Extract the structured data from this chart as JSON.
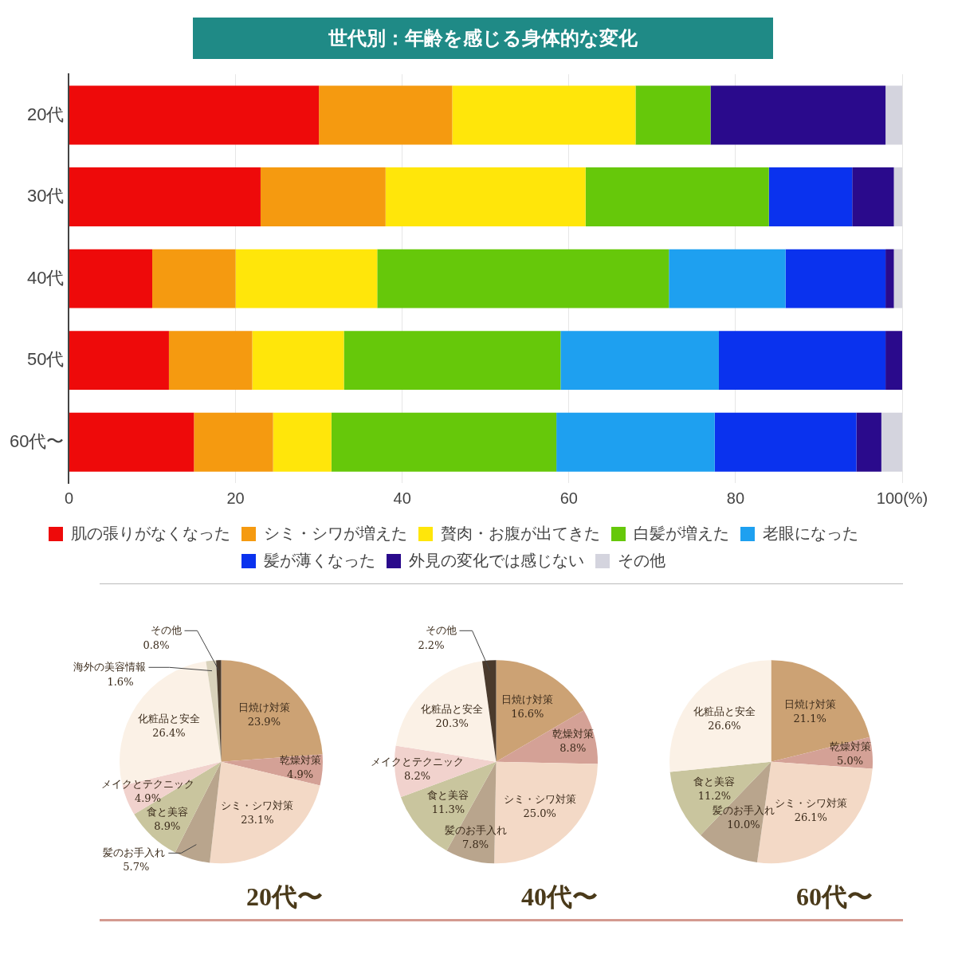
{
  "chart_data": [
    {
      "type": "bar",
      "orientation": "horizontal",
      "stacked": true,
      "title": "世代別：年齢を感じる身体的な変化",
      "categories": [
        "20代",
        "30代",
        "40代",
        "50代",
        "60代〜"
      ],
      "xlim": [
        0,
        100
      ],
      "xticks": [
        0,
        20,
        40,
        60,
        {
          "value": 100,
          "label": "100(%)"
        },
        80
      ],
      "grid": "x",
      "legend": "bottom",
      "series": [
        {
          "name": "肌の張りがなくなった",
          "color": "#ee0a0a",
          "values": [
            30,
            23,
            10,
            12,
            15
          ]
        },
        {
          "name": "シミ・シワが増えた",
          "color": "#f59a10",
          "values": [
            16,
            15,
            10,
            10,
            9.5
          ]
        },
        {
          "name": "贅肉・お腹が出てきた",
          "color": "#ffe60a",
          "values": [
            22,
            24,
            17,
            11,
            7
          ]
        },
        {
          "name": "白髪が増えた",
          "color": "#66c80a",
          "values": [
            9,
            22,
            35,
            26,
            27
          ]
        },
        {
          "name": "老眼になった",
          "color": "#1ea0f0",
          "values": [
            0,
            0,
            14,
            19,
            19
          ]
        },
        {
          "name": "髪が薄くなった",
          "color": "#0a32ee",
          "values": [
            0,
            10,
            12,
            20,
            17
          ]
        },
        {
          "name": "外見の変化では感じない",
          "color": "#2a0a8c",
          "values": [
            21,
            5,
            1,
            2,
            3
          ]
        },
        {
          "name": "その他",
          "color": "#d4d4de",
          "values": [
            2,
            1,
            1,
            0,
            2.5
          ]
        }
      ]
    },
    {
      "type": "pie",
      "title": "20代〜",
      "categories": [
        "日焼け対策",
        "乾燥対策",
        "シミ・シワ対策",
        "髪のお手入れ",
        "食と美容",
        "メイクとテクニック",
        "化粧品と安全",
        "海外の美容情報",
        "その他"
      ],
      "values": [
        23.9,
        4.9,
        23.1,
        5.7,
        8.9,
        4.9,
        26.4,
        1.6,
        0.8
      ],
      "value_labels": [
        "23.9%",
        "4.9%",
        "23.1%",
        "5.7%",
        "8.9%",
        "4.9%",
        "26.4%",
        "1.6%",
        "0.8%"
      ],
      "colors": [
        "#cca274",
        "#d4a196",
        "#f3d9c6",
        "#b9a58d",
        "#c9c59e",
        "#f1d2cd",
        "#fbf1e6",
        "#d9d2bb",
        "#4a3a2c"
      ]
    },
    {
      "type": "pie",
      "title": "40代〜",
      "categories": [
        "日焼け対策",
        "乾燥対策",
        "シミ・シワ対策",
        "髪のお手入れ",
        "食と美容",
        "メイクとテクニック",
        "化粧品と安全",
        "その他"
      ],
      "values": [
        16.6,
        8.8,
        25.0,
        7.8,
        11.3,
        8.2,
        20.3,
        2.2
      ],
      "value_labels": [
        "16.6%",
        "8.8%",
        "25.0%",
        "7.8%",
        "11.3%",
        "8.2%",
        "20.3%",
        "2.2%"
      ],
      "colors": [
        "#cca274",
        "#d4a196",
        "#f3d9c6",
        "#b9a58d",
        "#c9c59e",
        "#f1d2cd",
        "#fbf1e6",
        "#4a3a2c"
      ]
    },
    {
      "type": "pie",
      "title": "60代〜",
      "categories": [
        "日焼け対策",
        "乾燥対策",
        "シミ・シワ対策",
        "髪のお手入れ",
        "食と美容",
        "化粧品と安全"
      ],
      "values": [
        21.1,
        5.0,
        26.1,
        10.0,
        11.2,
        26.6
      ],
      "value_labels": [
        "21.1%",
        "5.0%",
        "26.1%",
        "10.0%",
        "11.2%",
        "26.6%"
      ],
      "colors": [
        "#cca274",
        "#d4a196",
        "#f3d9c6",
        "#b9a58d",
        "#c9c59e",
        "#fbf1e6"
      ]
    }
  ]
}
